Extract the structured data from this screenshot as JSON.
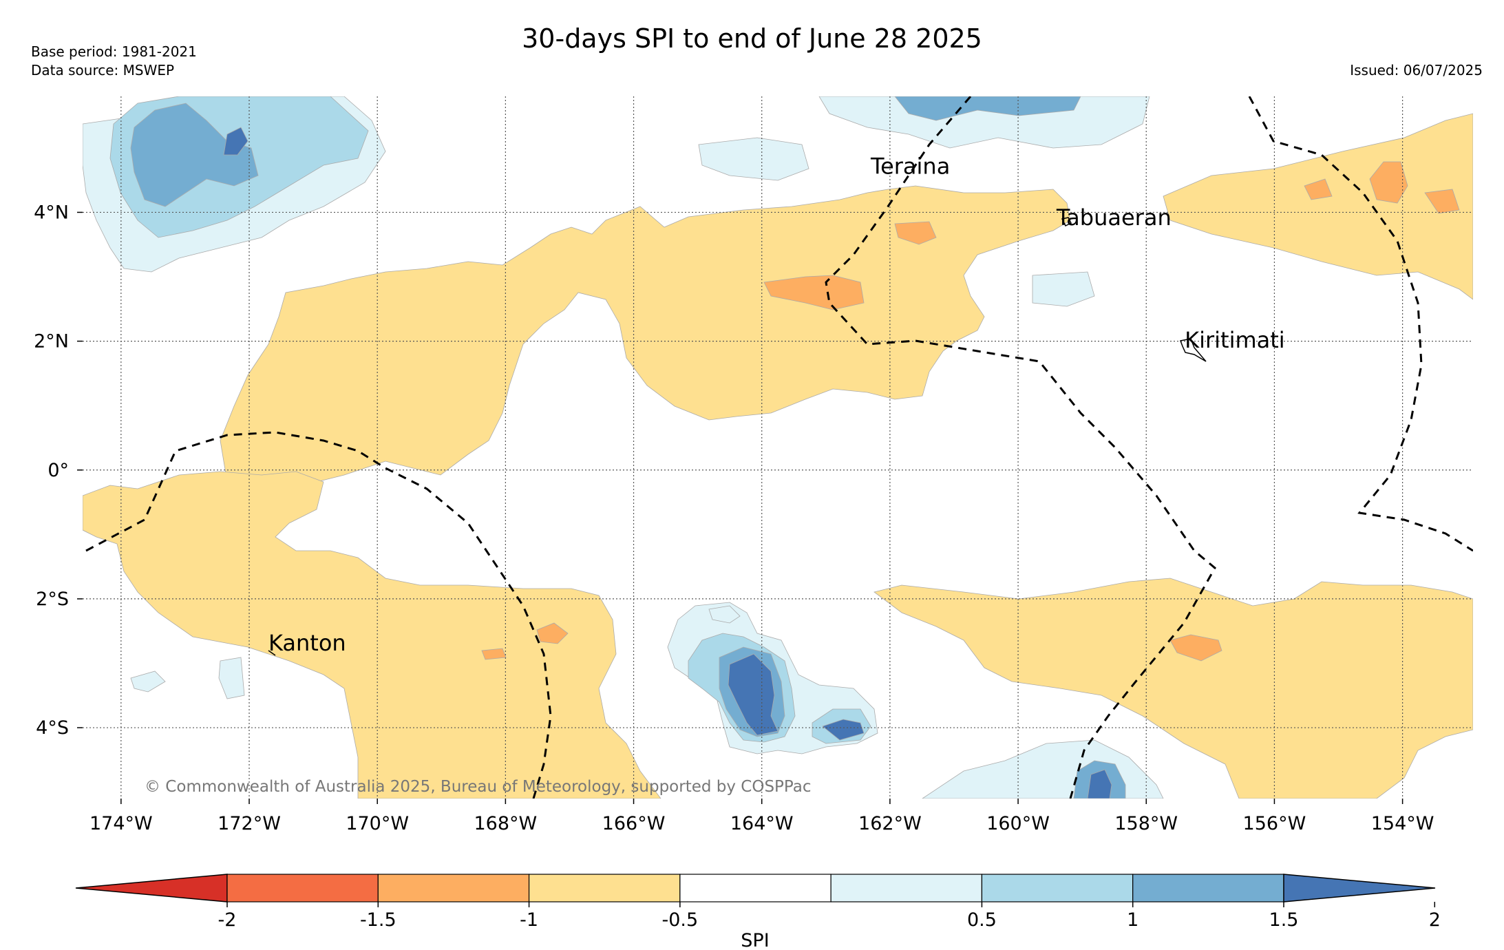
{
  "header": {
    "title": "30-days SPI to end of June 28 2025",
    "base_period": "Base period: 1981-2021",
    "data_source": "Data source: MSWEP",
    "issued": "Issued: 06/07/2025"
  },
  "map": {
    "lon_range": [
      -174.6,
      -152.9
    ],
    "lat_range": [
      -5.1,
      5.8
    ],
    "lon_ticks": [
      {
        "value": -174,
        "label": "174°W"
      },
      {
        "value": -172,
        "label": "172°W"
      },
      {
        "value": -170,
        "label": "170°W"
      },
      {
        "value": -168,
        "label": "168°W"
      },
      {
        "value": -166,
        "label": "166°W"
      },
      {
        "value": -164,
        "label": "164°W"
      },
      {
        "value": -162,
        "label": "162°W"
      },
      {
        "value": -160,
        "label": "160°W"
      },
      {
        "value": -158,
        "label": "158°W"
      },
      {
        "value": -156,
        "label": "156°W"
      },
      {
        "value": -154,
        "label": "154°W"
      }
    ],
    "lat_ticks": [
      {
        "value": 4,
        "label": "4°N"
      },
      {
        "value": 2,
        "label": "2°N"
      },
      {
        "value": 0,
        "label": "0°"
      },
      {
        "value": -2,
        "label": "2°S"
      },
      {
        "value": -4,
        "label": "4°S"
      }
    ],
    "places": [
      {
        "name": "Teraina",
        "lon": -162.3,
        "lat": 4.6
      },
      {
        "name": "Tabuaeran",
        "lon": -159.4,
        "lat": 3.8
      },
      {
        "name": "Kiritimati",
        "lon": -157.4,
        "lat": 1.9
      },
      {
        "name": "Kanton",
        "lon": -171.7,
        "lat": -2.8
      }
    ],
    "grid": "dotted",
    "copyright": "© Commonwealth of Australia 2025, Bureau of Meteorology, supported by COSPPac"
  },
  "colorbar": {
    "label": "SPI",
    "ticks": [
      "-2",
      "-1.5",
      "-1",
      "-0.5",
      "0.5",
      "1",
      "1.5",
      "2"
    ],
    "colors": [
      "#d73027",
      "#f46d43",
      "#fdae61",
      "#fee090",
      "#ffffff",
      "#e0f3f8",
      "#abd9e9",
      "#74add1",
      "#4575b4"
    ]
  },
  "colors": {
    "dry_mild": "#fee090",
    "dry_moderate": "#fdae61",
    "wet_mild": "#e0f3f8",
    "wet_moderate": "#abd9e9",
    "wet_strong": "#74add1",
    "wet_severe": "#4575b4"
  }
}
